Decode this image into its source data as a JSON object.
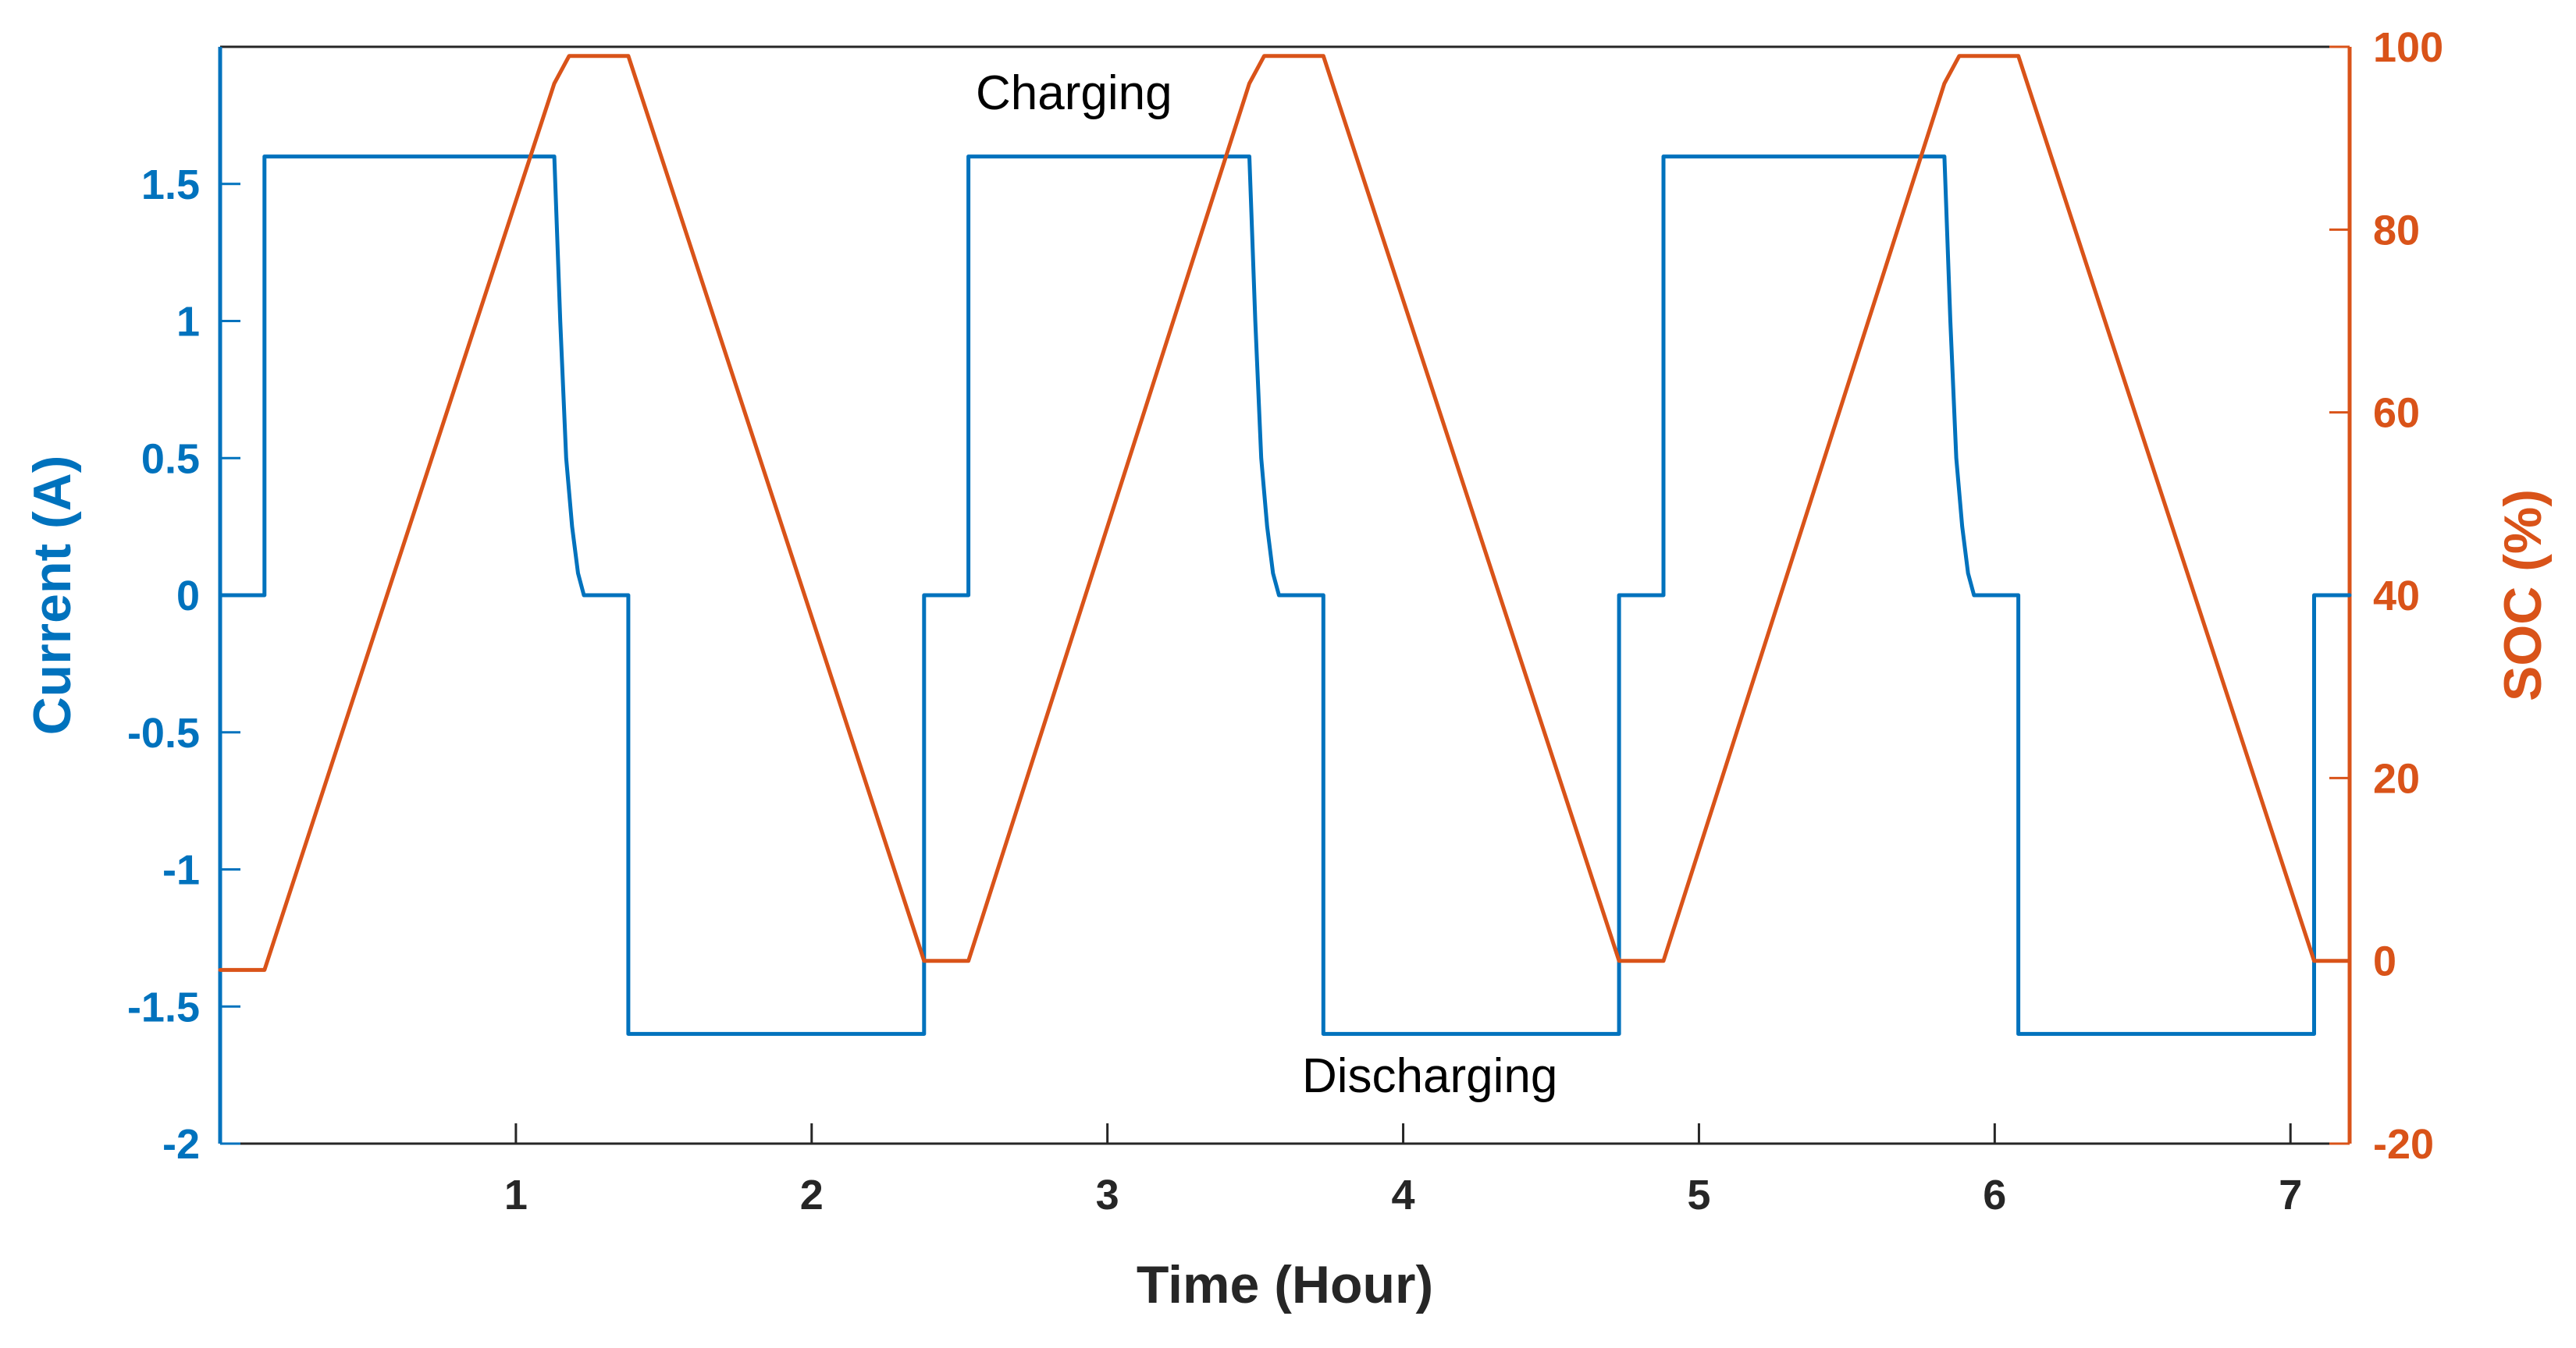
{
  "chart_data": {
    "type": "line",
    "title": "",
    "xlabel": "Time (Hour)",
    "ylabel_left": "Current (A)",
    "ylabel_right": "SOC (%)",
    "xlim": [
      0,
      7.2
    ],
    "ylim_left": [
      -2,
      2
    ],
    "ylim_right": [
      -20,
      100
    ],
    "grid": false,
    "x_ticks": [
      "1",
      "2",
      "3",
      "4",
      "5",
      "6",
      "7"
    ],
    "y_left_ticks": [
      "1.5",
      "1",
      "0.5",
      "0",
      "-0.5",
      "-1",
      "-1.5",
      "-2"
    ],
    "y_right_ticks": [
      "100",
      "80",
      "60",
      "40",
      "20",
      "0",
      "-20"
    ],
    "annotations": {
      "charging": "Charging",
      "discharging": "Discharging"
    },
    "series": [
      {
        "name": "Current (A)",
        "axis": "left",
        "color": "#0072BD",
        "x": [
          0.0,
          0.15,
          0.15,
          1.13,
          1.15,
          1.17,
          1.19,
          1.21,
          1.23,
          1.23,
          1.38,
          1.38,
          2.38,
          2.38,
          2.53,
          2.53,
          3.48,
          3.5,
          3.52,
          3.54,
          3.56,
          3.58,
          3.58,
          3.73,
          3.73,
          4.73,
          4.73,
          4.88,
          4.88,
          5.83,
          5.85,
          5.87,
          5.89,
          5.91,
          5.93,
          5.93,
          6.08,
          6.08,
          7.08,
          7.08,
          7.2
        ],
        "y": [
          0.0,
          0.0,
          1.6,
          1.6,
          1.0,
          0.5,
          0.25,
          0.08,
          0.0,
          0.0,
          0.0,
          -1.6,
          -1.6,
          0.0,
          0.0,
          1.6,
          1.6,
          1.0,
          0.5,
          0.25,
          0.08,
          0.0,
          0.0,
          0.0,
          -1.6,
          -1.6,
          0.0,
          0.0,
          1.6,
          1.6,
          1.0,
          0.5,
          0.25,
          0.08,
          0.0,
          0.0,
          0.0,
          -1.6,
          -1.6,
          0.0,
          0.0
        ]
      },
      {
        "name": "SOC (%)",
        "axis": "right",
        "color": "#D95319",
        "x": [
          0.0,
          0.15,
          1.13,
          1.18,
          1.23,
          1.38,
          2.38,
          2.53,
          3.48,
          3.53,
          3.58,
          3.73,
          4.73,
          4.88,
          5.83,
          5.88,
          5.93,
          6.08,
          7.08,
          7.2
        ],
        "y": [
          -1,
          -1,
          96,
          99,
          99,
          99,
          0,
          0,
          96,
          99,
          99,
          99,
          0,
          0,
          96,
          99,
          99,
          99,
          0,
          0
        ]
      }
    ]
  },
  "colors": {
    "current": "#0072BD",
    "soc": "#D95319",
    "text": "#262626"
  }
}
